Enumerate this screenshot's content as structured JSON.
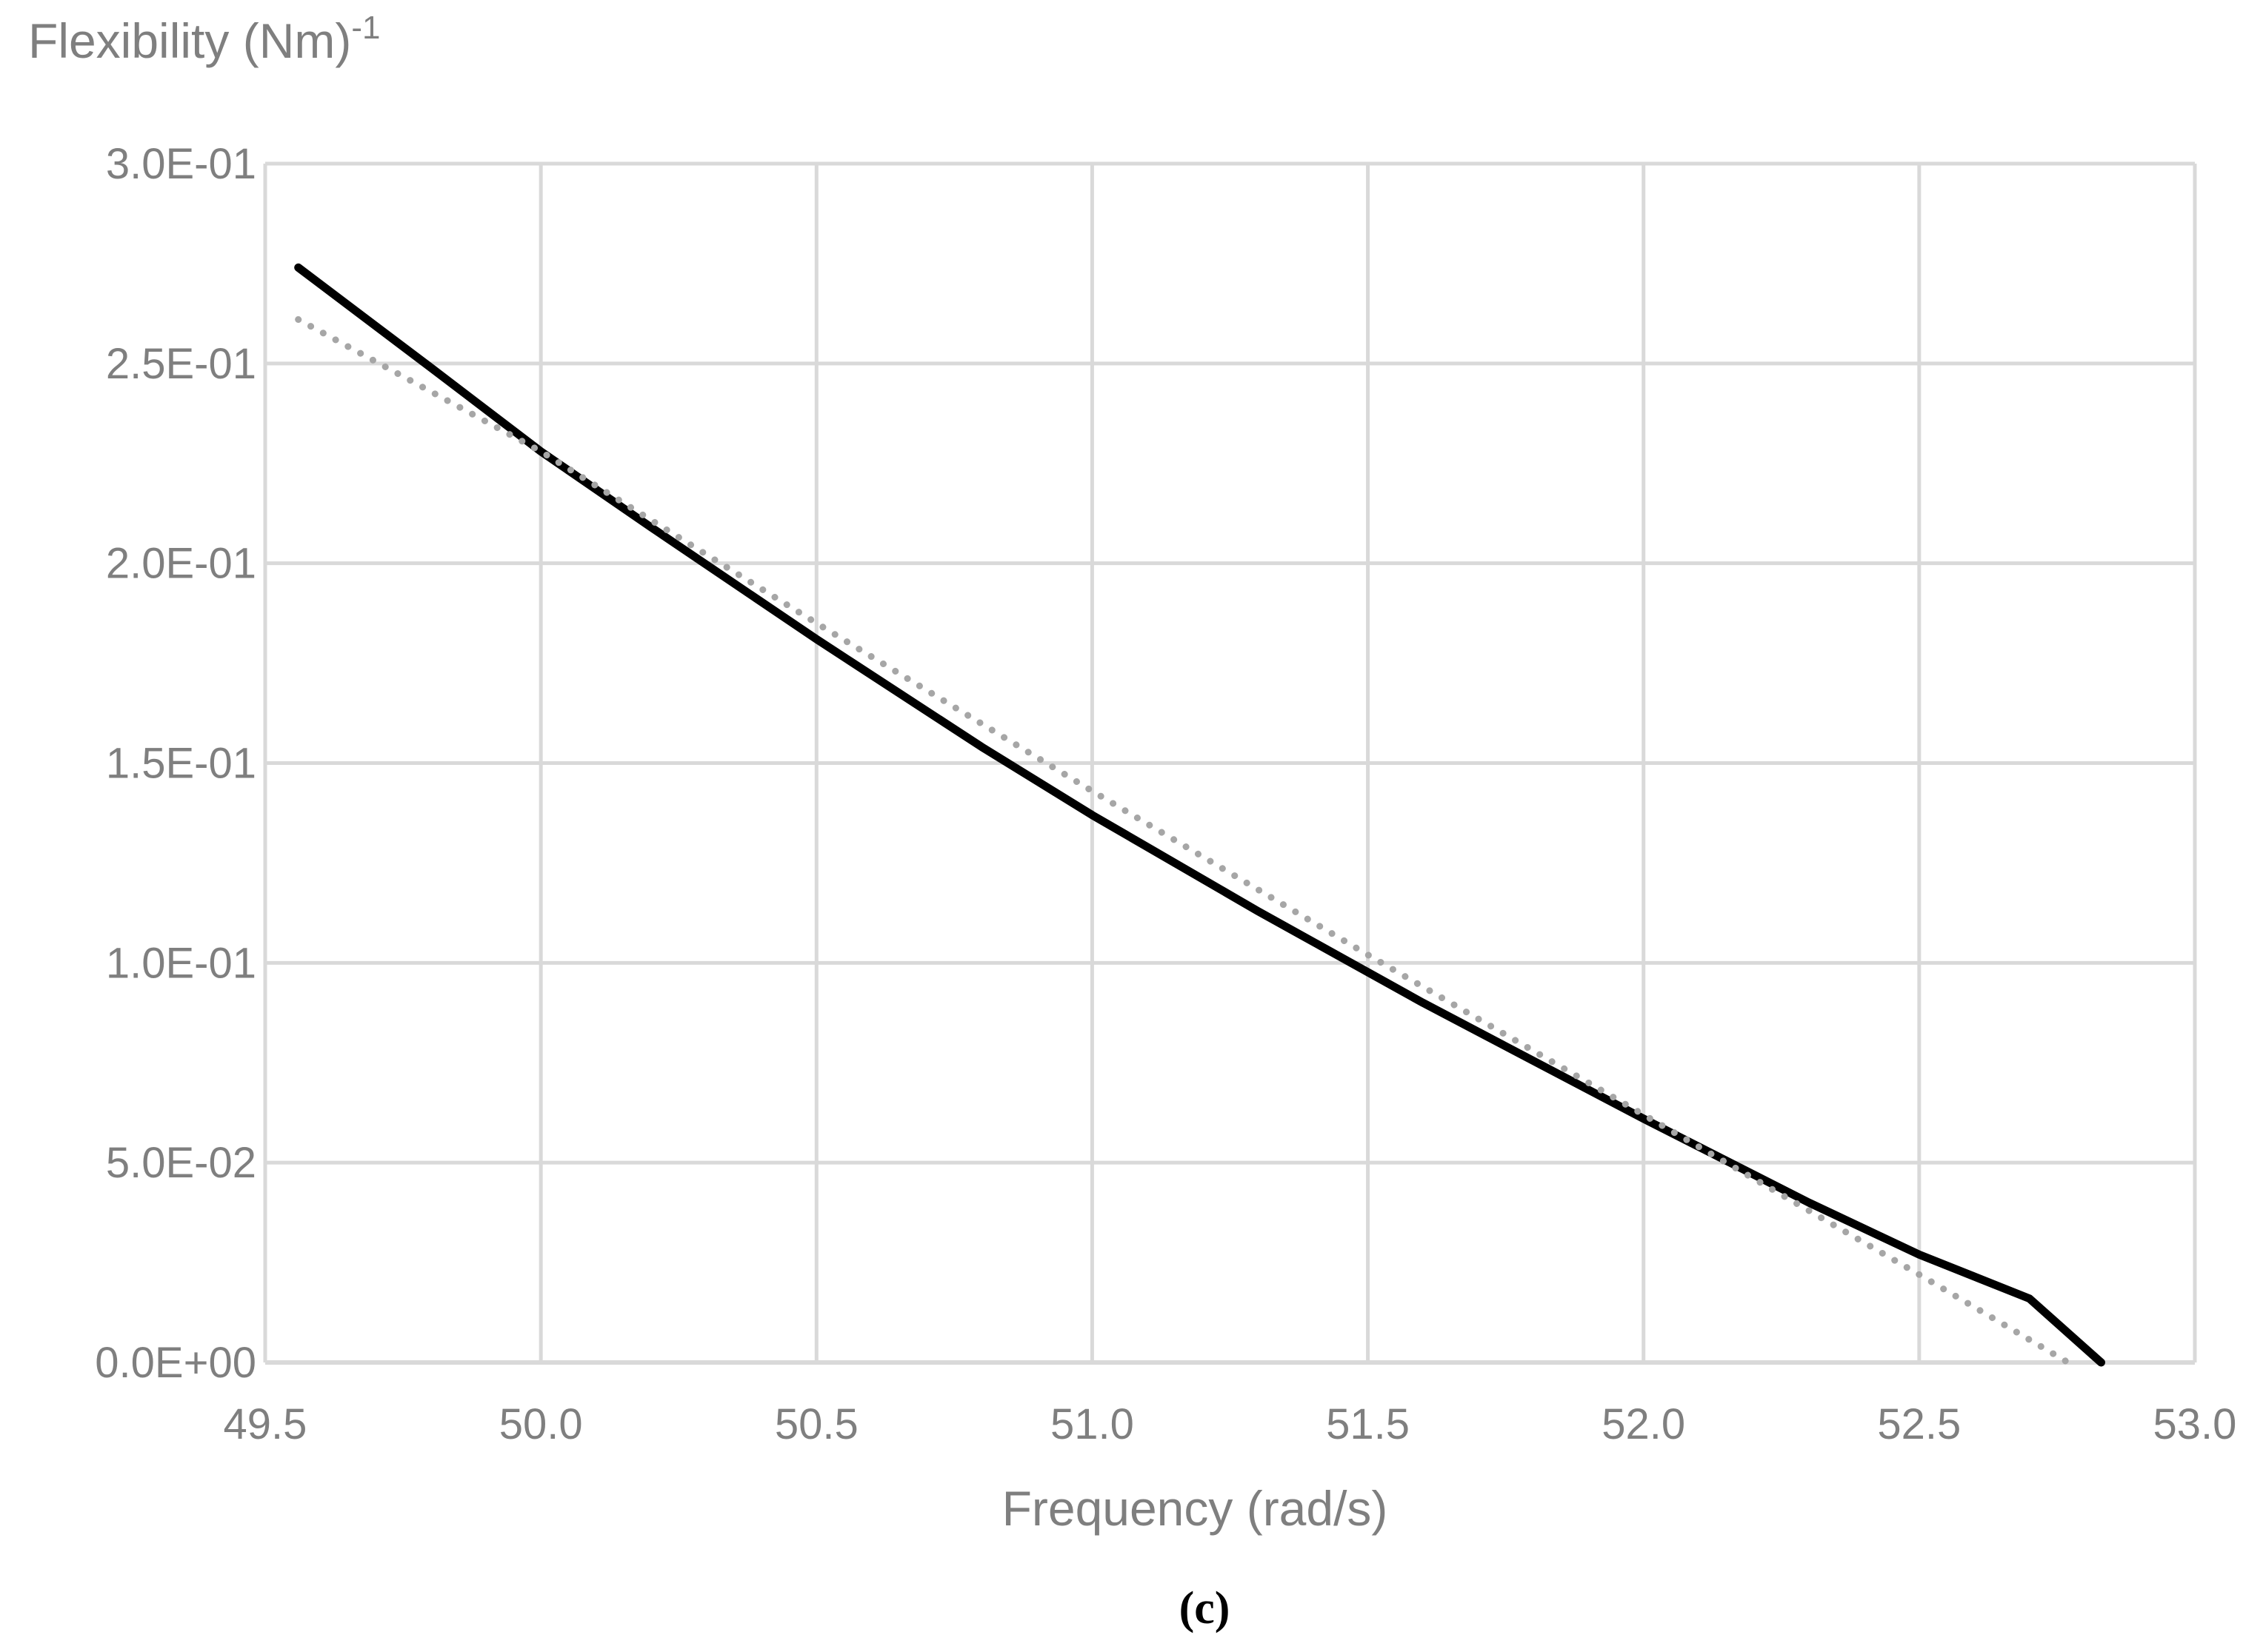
{
  "chart_data": {
    "type": "line",
    "ylabel": "Flexibility (Nm)",
    "ylabel_superscript": "-1",
    "xlabel": "Frequency (rad/s)",
    "panel_label": "(c)",
    "xlim": [
      49.5,
      53.0
    ],
    "ylim": [
      0,
      0.3
    ],
    "grid": true,
    "legend": "none",
    "x_ticks": [
      "49.5",
      "50.0",
      "50.5",
      "51.0",
      "51.5",
      "52.0",
      "52.5",
      "53.0"
    ],
    "y_ticks": [
      "0.0E+00",
      "5.0E-02",
      "1.0E-01",
      "1.5E-01",
      "2.0E-01",
      "2.5E-01",
      "3.0E-01"
    ],
    "series": [
      {
        "style": "solid",
        "color": "#000000",
        "x": [
          49.56,
          49.8,
          50.0,
          50.2,
          50.5,
          50.8,
          51.0,
          51.3,
          51.6,
          52.0,
          52.3,
          52.5,
          52.7,
          52.83
        ],
        "y": [
          0.274,
          0.249,
          0.228,
          0.209,
          0.181,
          0.154,
          0.137,
          0.113,
          0.09,
          0.061,
          0.04,
          0.027,
          0.016,
          0.0
        ]
      },
      {
        "style": "dotted",
        "color": "#a6a6a6",
        "x": [
          49.56,
          50.0,
          50.5,
          51.0,
          51.5,
          52.0,
          52.5,
          52.77
        ],
        "y": [
          0.261,
          0.228,
          0.185,
          0.143,
          0.102,
          0.062,
          0.022,
          0.0
        ]
      }
    ]
  }
}
